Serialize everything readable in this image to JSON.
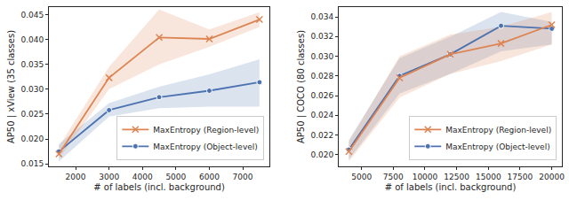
{
  "chart_data": [
    {
      "type": "line",
      "x_label": "# of labels (incl. background)",
      "y_label": "AP50 | xView (35 classes)",
      "x": [
        1500,
        3000,
        4500,
        6000,
        7500
      ],
      "series": [
        {
          "name": "MaxEntropy (Object-level)",
          "color": "#4c72b0",
          "marker": "circle",
          "values": [
            0.0175,
            0.0258,
            0.0284,
            0.0297,
            0.0314
          ],
          "lower": [
            0.0155,
            0.0245,
            0.0262,
            0.0265,
            0.0265
          ],
          "upper": [
            0.019,
            0.0272,
            0.0305,
            0.033,
            0.036
          ]
        },
        {
          "name": "MaxEntropy (Region-level)",
          "color": "#dd8452",
          "marker": "x",
          "values": [
            0.017,
            0.0323,
            0.0404,
            0.0401,
            0.044
          ],
          "lower": [
            0.016,
            0.03,
            0.035,
            0.0385,
            0.0425
          ],
          "upper": [
            0.0185,
            0.0345,
            0.046,
            0.042,
            0.0455
          ]
        }
      ],
      "xlim": [
        1200,
        7800
      ],
      "xticks": [
        2000,
        3000,
        4000,
        5000,
        6000,
        7000
      ],
      "ylim": [
        0.0145,
        0.0465
      ],
      "yticks": [
        {
          "value": 0.015,
          "label": "0.015"
        },
        {
          "value": 0.02,
          "label": "0.020"
        },
        {
          "value": 0.025,
          "label": "0.025"
        },
        {
          "value": 0.03,
          "label": "0.030"
        },
        {
          "value": 0.035,
          "label": "0.035"
        },
        {
          "value": 0.04,
          "label": "0.040"
        },
        {
          "value": 0.045,
          "label": "0.045"
        }
      ],
      "grid": false,
      "legend": "lower right"
    },
    {
      "type": "line",
      "x_label": "# of labels (incl. background)",
      "y_label": "AP50 | COCO (80 classes)",
      "x": [
        4000,
        8000,
        12000,
        16000,
        20000
      ],
      "series": [
        {
          "name": "MaxEntropy (Object-level)",
          "color": "#4c72b0",
          "marker": "circle",
          "values": [
            0.0205,
            0.028,
            0.0302,
            0.0331,
            0.0328
          ],
          "lower": [
            0.0195,
            0.0262,
            0.0282,
            0.0305,
            0.0312
          ],
          "upper": [
            0.0215,
            0.0298,
            0.032,
            0.0345,
            0.0335
          ]
        },
        {
          "name": "MaxEntropy (Region-level)",
          "color": "#dd8452",
          "marker": "x",
          "values": [
            0.0203,
            0.0278,
            0.0302,
            0.0313,
            0.0332
          ],
          "lower": [
            0.0193,
            0.0258,
            0.0282,
            0.0295,
            0.0312
          ],
          "upper": [
            0.0213,
            0.03,
            0.0322,
            0.033,
            0.0345
          ]
        }
      ],
      "xlim": [
        3200,
        20800
      ],
      "xticks": [
        {
          "value": 5000,
          "label": "5000"
        },
        {
          "value": 7500,
          "label": "7500"
        },
        {
          "value": 10000,
          "label": "10000"
        },
        {
          "value": 12500,
          "label": "12500"
        },
        {
          "value": 15000,
          "label": "15000"
        },
        {
          "value": 17500,
          "label": "17500"
        },
        {
          "value": 20000,
          "label": "20000"
        }
      ],
      "ylim": [
        0.0188,
        0.035
      ],
      "yticks": [
        {
          "value": 0.02,
          "label": "0.020"
        },
        {
          "value": 0.022,
          "label": "0.022"
        },
        {
          "value": 0.024,
          "label": "0.024"
        },
        {
          "value": 0.026,
          "label": "0.026"
        },
        {
          "value": 0.028,
          "label": "0.028"
        },
        {
          "value": 0.03,
          "label": "0.030"
        },
        {
          "value": 0.032,
          "label": "0.032"
        },
        {
          "value": 0.034,
          "label": "0.034"
        }
      ],
      "grid": false,
      "legend": "lower right"
    }
  ]
}
